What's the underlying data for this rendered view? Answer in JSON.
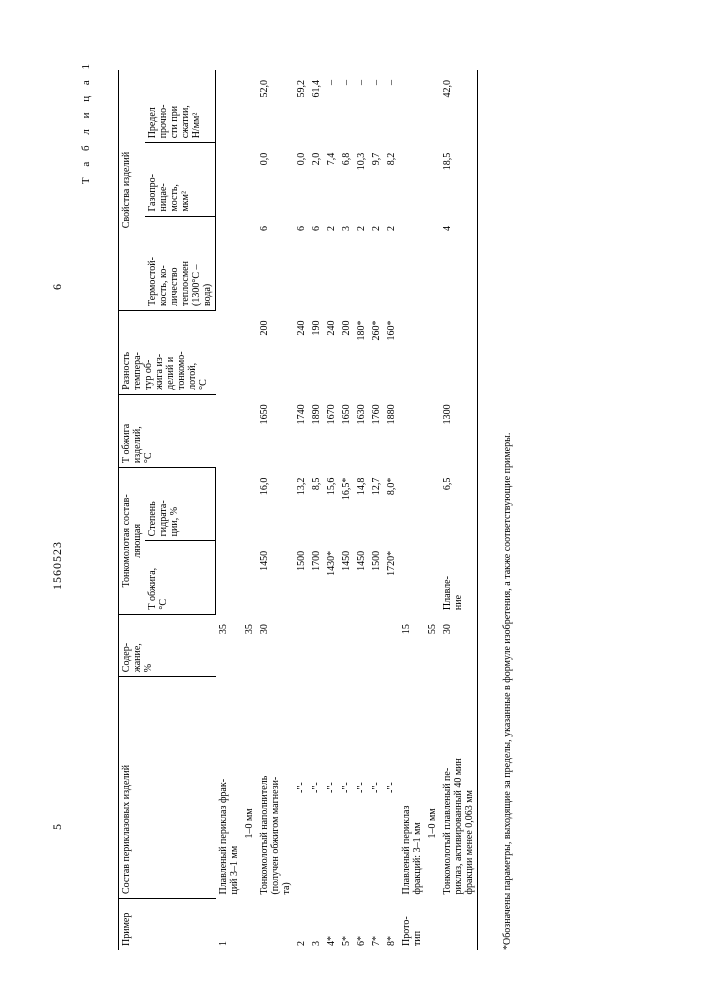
{
  "page": {
    "left_num": "5",
    "patent_num": "1560523",
    "right_num": "6",
    "table_label": "Т а б л и ц а  1"
  },
  "head": {
    "c1": "Пример",
    "c2": "Состав периклазовых изделий",
    "c3": "Содер-\nжание,\n%",
    "g4": "Тонкомолотая состав-\nляющая",
    "c4a": "Т обжига,\n°С",
    "c4b": "Степень\nгидрата-\nции, %",
    "c5": "Т обжига\nизделий,\n°С",
    "c6": "Разность\nтемпера-\nтур об-\nжига из-\nделий и\nтонкомо-\nлотой,\n°С",
    "g7": "Свойства изделий",
    "c7a": "Термостой-\nкость, ко-\nличество\nтеплосмен\n(1300°С –\nвода)",
    "c7b": "Газопро-\nницае-\nмость,\nмкм²",
    "c7c": "Предел\nпрочно-\nсти при\nсжатии,\nН/мм²"
  },
  "rows": {
    "r1_ex": "1",
    "r1_comp": "Плавленый периклаз фрак-\nций 3–1 мм",
    "r1_pct": "35",
    "r1b_comp": "1–0 мм",
    "r1b_pct": "35",
    "r1c_comp": "Тонкомолотый наполнитель\n(получен обжигом магнези-\nта)",
    "r1c_pct": "30",
    "r1c_t": "1450",
    "r1c_h": "16,0",
    "r1c_ti": "1650",
    "r1c_d": "200",
    "r1c_ts": "6",
    "r1c_g": "0,0",
    "r1c_p": "52,0",
    "r2_ex": "2",
    "r2_comp": "-\"-",
    "r2_t": "1500",
    "r2_h": "13,2",
    "r2_ti": "1740",
    "r2_d": "240",
    "r2_ts": "6",
    "r2_g": "0,0",
    "r2_p": "59,2",
    "r3_ex": "3",
    "r3_comp": "-\"-",
    "r3_t": "1700",
    "r3_h": "8,5",
    "r3_ti": "1890",
    "r3_d": "190",
    "r3_ts": "6",
    "r3_g": "2,0",
    "r3_p": "61,4",
    "r4_ex": "4*",
    "r4_comp": "-\"-",
    "r4_t": "1430*",
    "r4_h": "15,6",
    "r4_ti": "1670",
    "r4_d": "240",
    "r4_ts": "2",
    "r4_g": "7,4",
    "r4_p": "–",
    "r5_ex": "5*",
    "r5_comp": "-\"-",
    "r5_t": "1450",
    "r5_h": "16,5*",
    "r5_ti": "1650",
    "r5_d": "200",
    "r5_ts": "3",
    "r5_g": "6,8",
    "r5_p": "–",
    "r6_ex": "6*",
    "r6_comp": "-\"-",
    "r6_t": "1450",
    "r6_h": "14,8",
    "r6_ti": "1630",
    "r6_d": "180*",
    "r6_ts": "2",
    "r6_g": "10,3",
    "r6_p": "–",
    "r7_ex": "7*",
    "r7_comp": "-\"-",
    "r7_t": "1500",
    "r7_h": "12,7",
    "r7_ti": "1760",
    "r7_d": "260*",
    "r7_ts": "2",
    "r7_g": "9,7",
    "r7_p": "–",
    "r8_ex": "8*",
    "r8_comp": "-\"-",
    "r8_t": "1720*",
    "r8_h": "8,0*",
    "r8_ti": "1880",
    "r8_d": "160*",
    "r8_ts": "2",
    "r8_g": "8,2",
    "r8_p": "–",
    "proto_ex": "Прото-\nтип",
    "proto_comp": "Плавленый периклаз\nфракций: 3–1 мм",
    "proto_pct": "15",
    "proto_b_comp": "1–0 мм",
    "proto_b_pct": "55",
    "proto_c_comp": "Тонкомолотый плавленый пе-\nриклаз, активированный 40 мин\nфракции менее 0,063 мм",
    "proto_c_pct": "30",
    "proto_c_t": "Плавле-\nние",
    "proto_c_h": "6,5",
    "proto_c_ti": "1300",
    "proto_c_d": "",
    "proto_c_ts": "4",
    "proto_c_g": "18,5",
    "proto_c_p": "42,0"
  },
  "footnote": "*Обозначены параметры, выходящие за пределы, указанные в формуле изобретения, а также соответствующие примеры."
}
